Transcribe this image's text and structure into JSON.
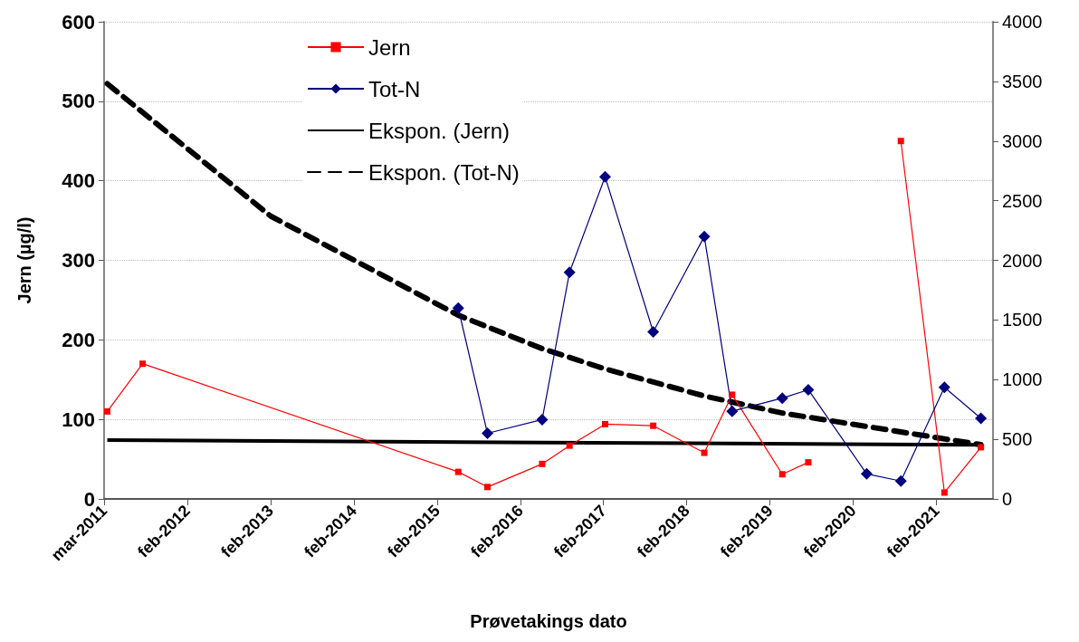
{
  "chart_data": {
    "type": "line",
    "xlabel": "Prøvetakings dato",
    "ylabel": "Jern (µg/l)",
    "xlim": [
      "2011-03-01",
      "2021-11-01"
    ],
    "xticks": [
      {
        "value": "2011-03-01",
        "label": "mar-2011"
      },
      {
        "value": "2012-02-29",
        "label": "feb-2012"
      },
      {
        "value": "2013-02-28",
        "label": "feb-2013"
      },
      {
        "value": "2014-02-28",
        "label": "feb-2014"
      },
      {
        "value": "2015-02-28",
        "label": "feb-2015"
      },
      {
        "value": "2016-02-28",
        "label": "feb-2016"
      },
      {
        "value": "2017-02-27",
        "label": "feb-2017"
      },
      {
        "value": "2018-02-27",
        "label": "feb-2018"
      },
      {
        "value": "2019-02-27",
        "label": "feb-2019"
      },
      {
        "value": "2020-02-27",
        "label": "feb-2020"
      },
      {
        "value": "2021-02-26",
        "label": "feb-2021"
      }
    ],
    "ylim": [
      0,
      600
    ],
    "yticks": [
      0,
      100,
      200,
      300,
      400,
      500,
      600
    ],
    "y2lim": [
      0,
      4000
    ],
    "y2ticks": [
      0,
      500,
      1000,
      1500,
      2000,
      2500,
      3000,
      3500,
      4000
    ],
    "grid": "y",
    "legend": "top",
    "series": [
      {
        "name": "Jern",
        "color": "#ff0000",
        "marker": "square",
        "line_style": "solid",
        "x": [
          "2011-03-15",
          "2011-08-17",
          "2015-06-01",
          "2015-10-07",
          "2016-06-03",
          "2016-10-01",
          "2017-03-06",
          "2017-10-03",
          "2018-05-15",
          "2018-09-14",
          "2019-04-22",
          "2019-08-14",
          "2020-04-26",
          "2020-09-23",
          "2021-04-02",
          "2021-09-09"
        ],
        "values": [
          110,
          170,
          34,
          15,
          44,
          67,
          94,
          92,
          58,
          131,
          31,
          46,
          null,
          450,
          8,
          65
        ]
      },
      {
        "name": "Tot-N",
        "color": "#000080",
        "marker": "diamond",
        "line_style": "solid",
        "axis": "y2",
        "x": [
          "2015-06-01",
          "2015-10-07",
          "2016-06-03",
          "2016-10-01",
          "2017-03-06",
          "2017-10-03",
          "2018-05-15",
          "2018-09-14",
          "2019-04-22",
          "2019-08-14",
          "2020-04-26",
          "2020-09-23",
          "2021-04-02",
          "2021-09-09"
        ],
        "values": [
          1600,
          550,
          665,
          1900,
          2700,
          1400,
          2200,
          735,
          845,
          915,
          210,
          150,
          935,
          675
        ]
      },
      {
        "name": "Ekspon. (Jern)",
        "color": "#000000",
        "marker": "none",
        "line_style": "solid",
        "x": [
          "2011-03-15",
          "2016-06-03",
          "2021-09-09"
        ],
        "values": [
          74,
          71,
          68
        ]
      },
      {
        "name": "Ekspon. (Tot-N)",
        "color": "#000000",
        "marker": "none",
        "line_style": "dashed",
        "axis": "y2",
        "x": [
          "2011-03-15",
          "2013-03-01",
          "2015-06-01",
          "2016-06-03",
          "2017-03-06",
          "2018-05-15",
          "2019-04-22",
          "2021-09-09"
        ],
        "values": [
          3480,
          2370,
          1540,
          1260,
          1090,
          863,
          720,
          455
        ]
      }
    ]
  }
}
